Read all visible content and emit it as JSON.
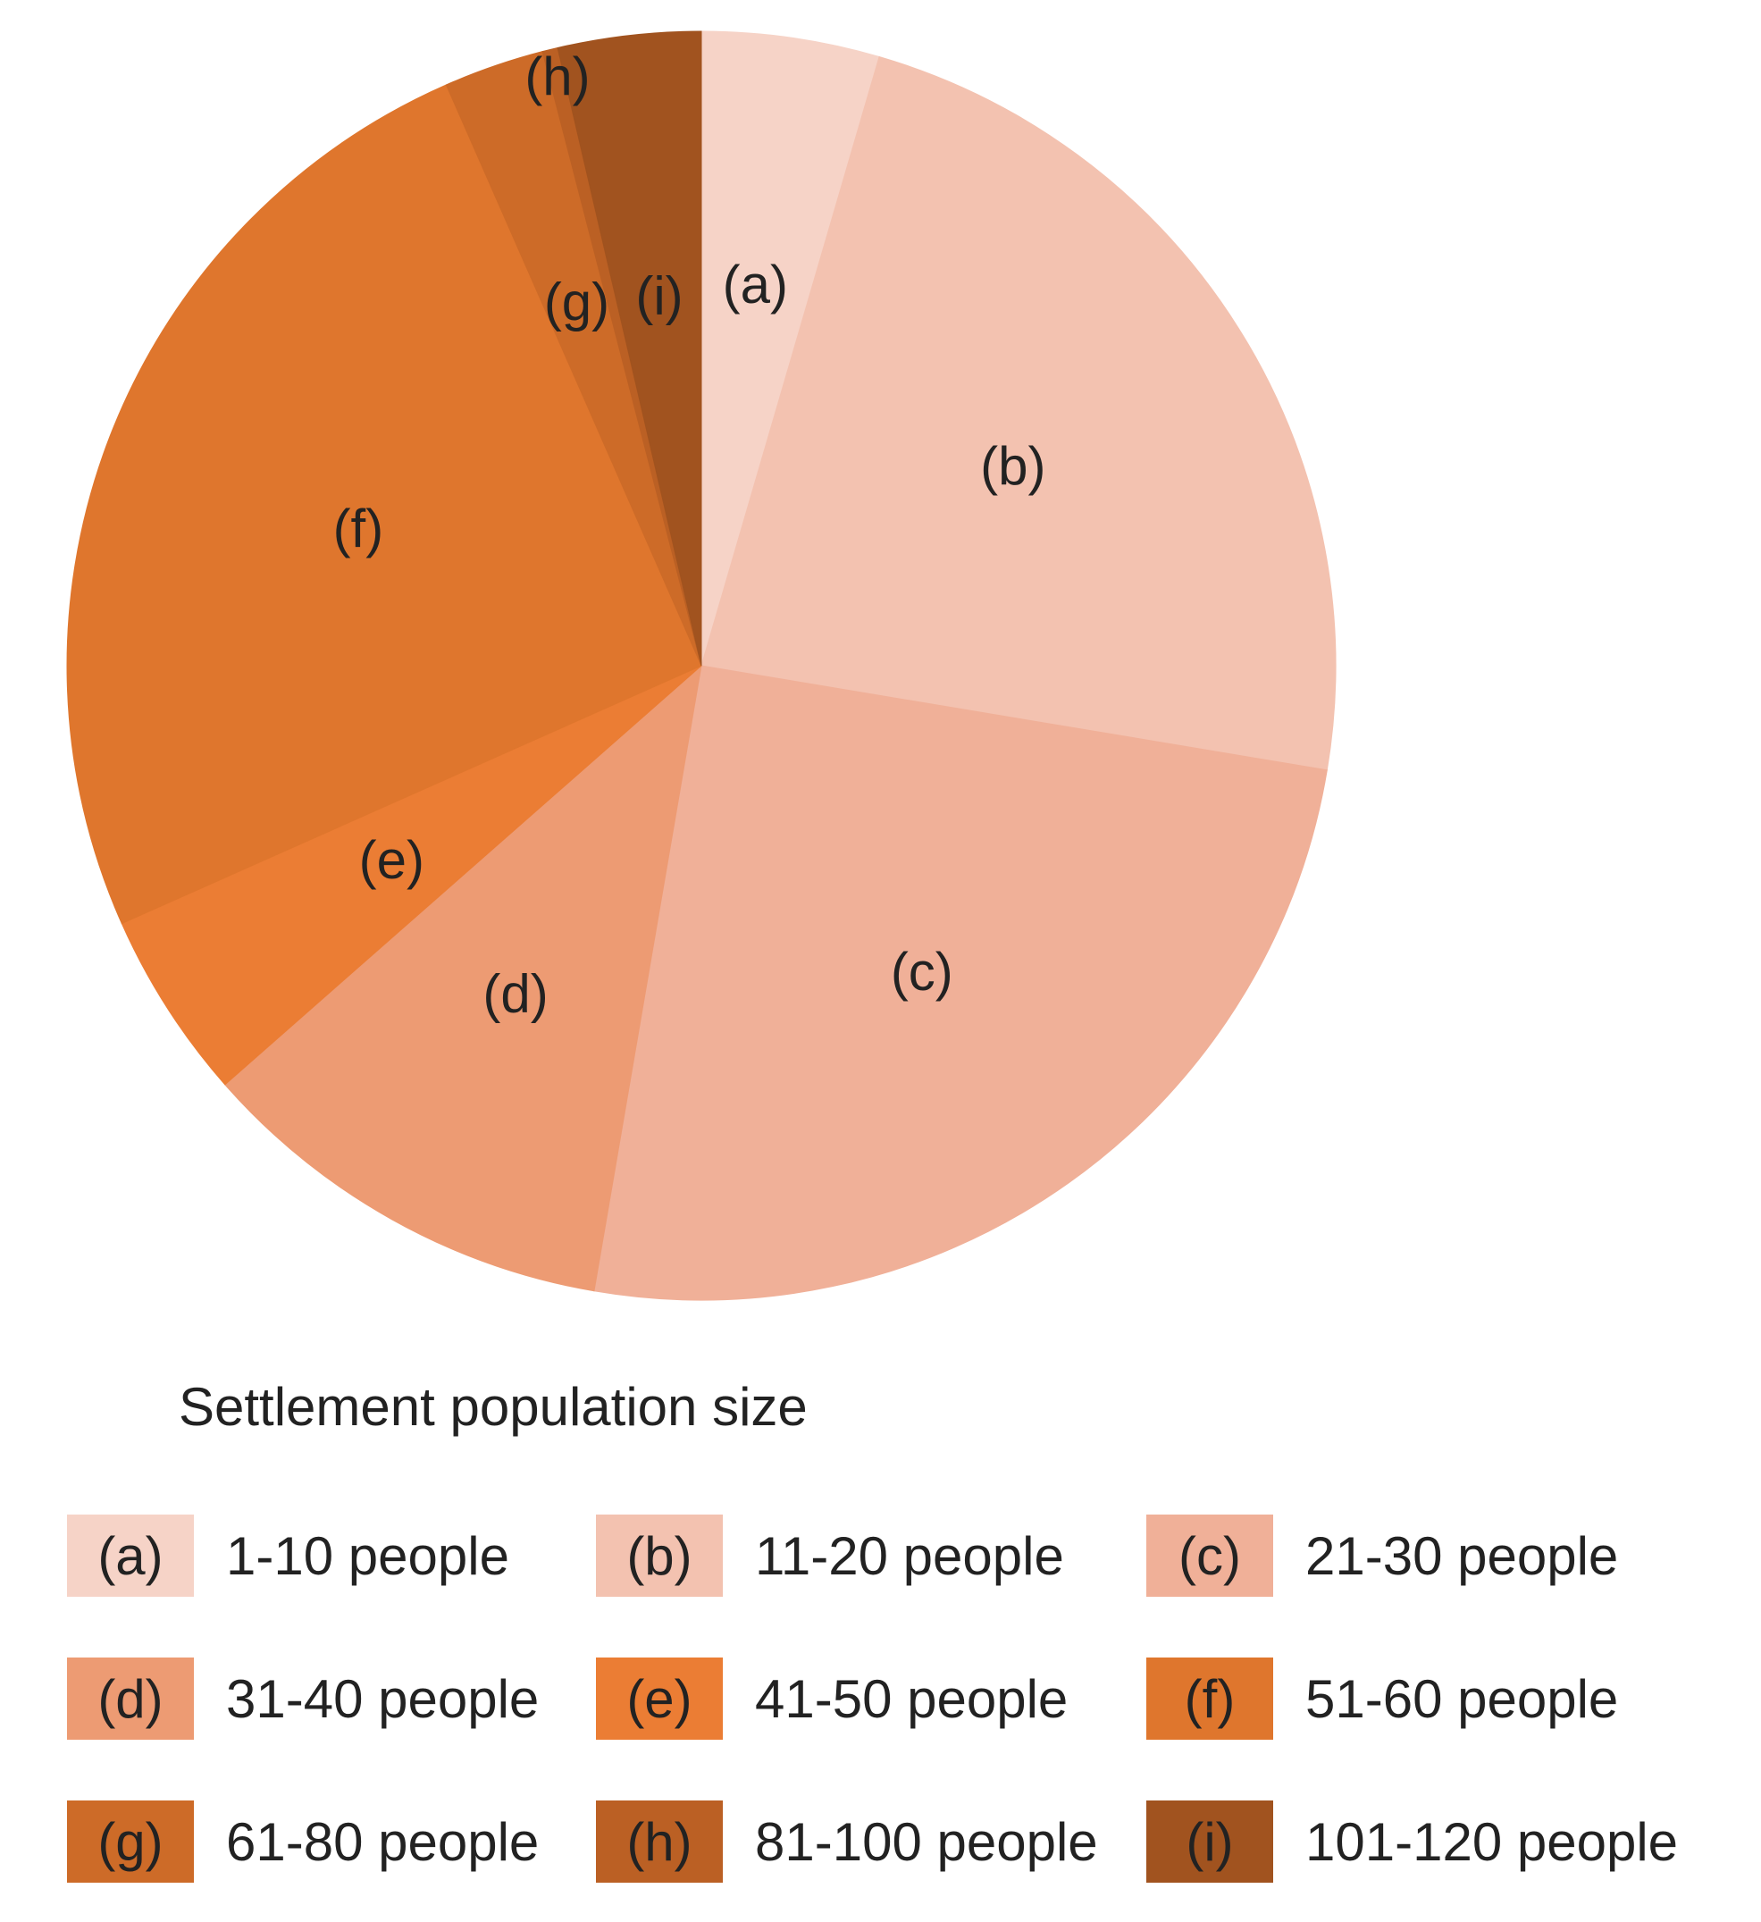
{
  "chart_data": {
    "type": "pie",
    "legend_title": "Settlement population size",
    "legend_placement": "bottom",
    "slices": [
      {
        "letter": "(a)",
        "category": "1-10 people",
        "value": 4.6,
        "color": "#f6d3c7"
      },
      {
        "letter": "(b)",
        "category": "11-20 people",
        "value": 23.5,
        "color": "#f3c2b0"
      },
      {
        "letter": "(c)",
        "category": "21-30 people",
        "value": 25.5,
        "color": "#f0b098"
      },
      {
        "letter": "(d)",
        "category": "31-40 people",
        "value": 11.0,
        "color": "#ed9b73"
      },
      {
        "letter": "(e)",
        "category": "41-50 people",
        "value": 4.9,
        "color": "#eb7d34"
      },
      {
        "letter": "(f)",
        "category": "51-60 people",
        "value": 25.5,
        "color": "#df762d"
      },
      {
        "letter": "(g)",
        "category": "61-80 people",
        "value": 2.6,
        "color": "#cd6b28"
      },
      {
        "letter": "(h)",
        "category": "81-100 people",
        "value": 0.4,
        "color": "#bb6024"
      },
      {
        "letter": "(i)",
        "category": "101-120 people",
        "value": 3.7,
        "color": "#a1531f"
      }
    ]
  }
}
